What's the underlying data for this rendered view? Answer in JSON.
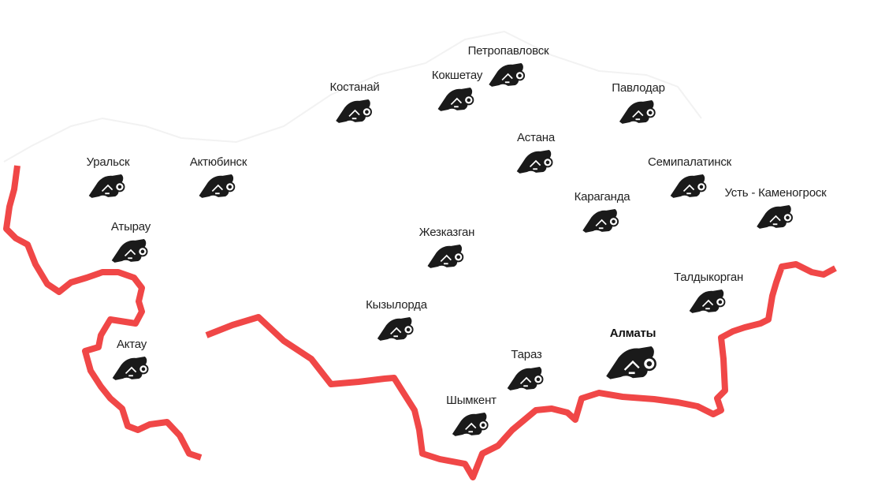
{
  "map": {
    "border_color": "#f04747",
    "icon_color": "#1a1a1a",
    "icon_name": "training-mask-icon"
  },
  "cities": [
    {
      "id": "petropavlovsk",
      "name": "Петропавловск"
    },
    {
      "id": "kostanay",
      "name": "Костанай"
    },
    {
      "id": "kokshetau",
      "name": "Кокшетау"
    },
    {
      "id": "pavlodar",
      "name": "Павлодар"
    },
    {
      "id": "astana",
      "name": "Астана"
    },
    {
      "id": "uralsk",
      "name": "Уральск"
    },
    {
      "id": "aktyubinsk",
      "name": "Актюбинск"
    },
    {
      "id": "semipalatinsk",
      "name": "Семипалатинск"
    },
    {
      "id": "ust-kamenogorsk",
      "name": "Усть - Каменогроск"
    },
    {
      "id": "karaganda",
      "name": "Караганда"
    },
    {
      "id": "atyrau",
      "name": "Атырау"
    },
    {
      "id": "zhezkazgan",
      "name": "Жезказган"
    },
    {
      "id": "taldykorgan",
      "name": "Талдыкорган"
    },
    {
      "id": "kyzylorda",
      "name": "Кызылорда"
    },
    {
      "id": "aktau",
      "name": "Актау"
    },
    {
      "id": "almaty",
      "name": "Алматы",
      "active": true
    },
    {
      "id": "taraz",
      "name": "Тараз"
    },
    {
      "id": "shymkent",
      "name": "Шымкент"
    }
  ]
}
